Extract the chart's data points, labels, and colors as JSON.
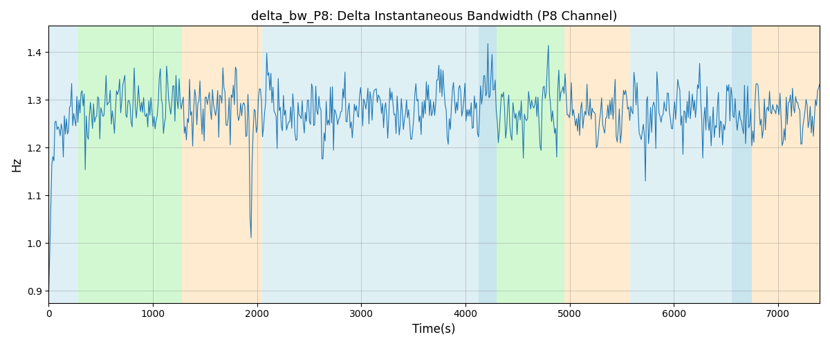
{
  "title": "delta_bw_P8: Delta Instantaneous Bandwidth (P8 Channel)",
  "xlabel": "Time(s)",
  "ylabel": "Hz",
  "xlim": [
    0,
    7400
  ],
  "ylim": [
    0.875,
    1.455
  ],
  "background_bands": [
    {
      "xstart": 0,
      "xend": 280,
      "color": "#add8e6",
      "alpha": 0.4
    },
    {
      "xstart": 280,
      "xend": 1280,
      "color": "#90ee90",
      "alpha": 0.4
    },
    {
      "xstart": 1280,
      "xend": 2050,
      "color": "#ffd9a0",
      "alpha": 0.5
    },
    {
      "xstart": 2050,
      "xend": 4130,
      "color": "#add8e6",
      "alpha": 0.38
    },
    {
      "xstart": 4130,
      "xend": 4300,
      "color": "#add8e6",
      "alpha": 0.65
    },
    {
      "xstart": 4300,
      "xend": 4950,
      "color": "#90ee90",
      "alpha": 0.4
    },
    {
      "xstart": 4950,
      "xend": 5580,
      "color": "#ffd9a0",
      "alpha": 0.5
    },
    {
      "xstart": 5580,
      "xend": 6560,
      "color": "#add8e6",
      "alpha": 0.38
    },
    {
      "xstart": 6560,
      "xend": 6750,
      "color": "#add8e6",
      "alpha": 0.65
    },
    {
      "xstart": 6750,
      "xend": 7400,
      "color": "#ffd9a0",
      "alpha": 0.5
    }
  ],
  "line_color": "#1f77b4",
  "line_width": 0.8,
  "grid": true,
  "title_fontsize": 13,
  "seed": 42,
  "n_points": 740,
  "t_max": 7400
}
